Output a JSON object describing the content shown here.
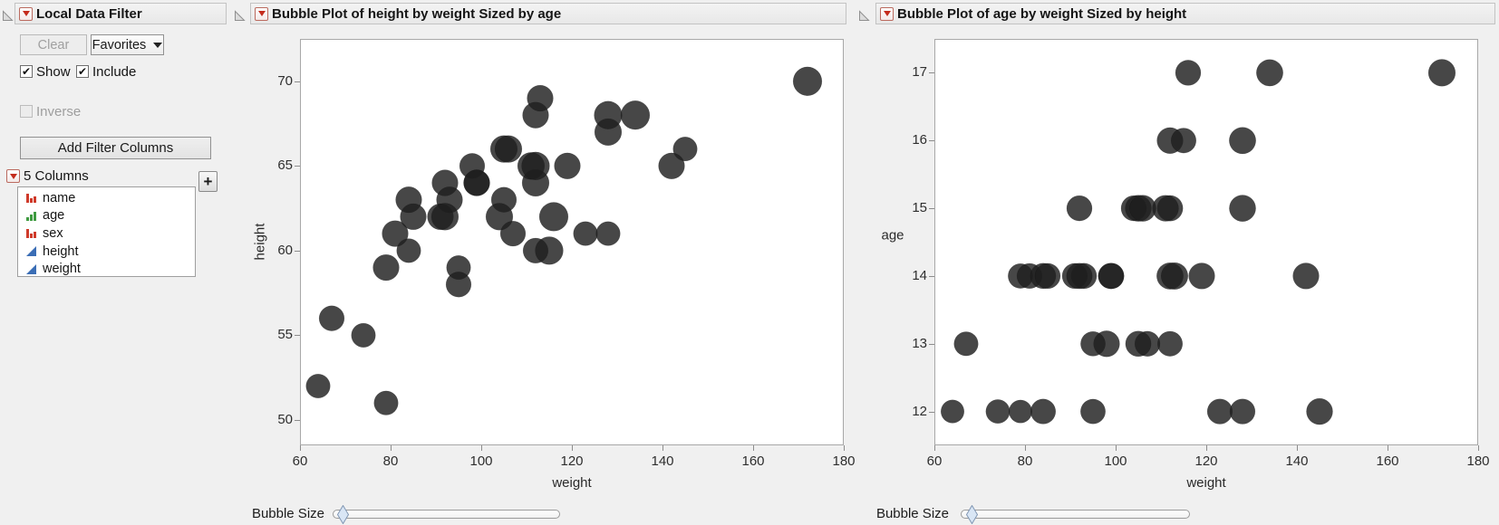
{
  "style": {
    "panel_bg": "#f0f0f0",
    "accent_red": "#c42b1c",
    "bubble_color": "#1e1e1e",
    "bubble_opacity": 0.82,
    "slider_thumb_color": "#d9e6f5",
    "nominal_icon_color": "#cf3a2a",
    "ordinal_icon_color": "#3f9b41",
    "continuous_icon_color": "#3a6db5"
  },
  "filter_panel": {
    "title": "Local Data Filter",
    "clear_button": "Clear",
    "favorites_button": "Favorites",
    "show_label": "Show",
    "include_label": "Include",
    "inverse_label": "Inverse",
    "show_checked": true,
    "include_checked": true,
    "inverse_checked": false,
    "add_filter_columns_button": "Add Filter Columns",
    "columns_count_label": "5 Columns",
    "add_column_button": "+",
    "columns": [
      {
        "name": "name",
        "type": "nominal"
      },
      {
        "name": "age",
        "type": "ordinal"
      },
      {
        "name": "sex",
        "type": "nominal"
      },
      {
        "name": "height",
        "type": "continuous"
      },
      {
        "name": "weight",
        "type": "continuous"
      }
    ]
  },
  "record_fields": [
    "weight",
    "height",
    "age"
  ],
  "records": [
    [
      95,
      59,
      12
    ],
    [
      123,
      61,
      12
    ],
    [
      74,
      55,
      12
    ],
    [
      145,
      66,
      12
    ],
    [
      64,
      52,
      12
    ],
    [
      84,
      60,
      12
    ],
    [
      128,
      61,
      12
    ],
    [
      79,
      51,
      12
    ],
    [
      112,
      60,
      13
    ],
    [
      107,
      61,
      13
    ],
    [
      67,
      56,
      13
    ],
    [
      98,
      65,
      13
    ],
    [
      105,
      63,
      13
    ],
    [
      95,
      58,
      13
    ],
    [
      79,
      59,
      14
    ],
    [
      81,
      61,
      14
    ],
    [
      91,
      62,
      14
    ],
    [
      142,
      65,
      14
    ],
    [
      84,
      63,
      14
    ],
    [
      85,
      62,
      14
    ],
    [
      93,
      63,
      14
    ],
    [
      99,
      64,
      14
    ],
    [
      119,
      65,
      14
    ],
    [
      92,
      64,
      14
    ],
    [
      112,
      68,
      14
    ],
    [
      99,
      64,
      14
    ],
    [
      113,
      69,
      14
    ],
    [
      92,
      62,
      15
    ],
    [
      112,
      64,
      15
    ],
    [
      128,
      67,
      15
    ],
    [
      111,
      65,
      15
    ],
    [
      105,
      66,
      15
    ],
    [
      104,
      62,
      15
    ],
    [
      106,
      66,
      15
    ],
    [
      112,
      65,
      16
    ],
    [
      115,
      60,
      16
    ],
    [
      128,
      68,
      16
    ],
    [
      116,
      62,
      17
    ],
    [
      134,
      68,
      17
    ],
    [
      172,
      70,
      17
    ]
  ],
  "chart_data": [
    {
      "type": "bubble",
      "title": "Bubble Plot of height by weight Sized by age",
      "xlabel": "weight",
      "ylabel": "height",
      "x_field": "weight",
      "y_field": "height",
      "size_field": "age",
      "size_scale": 3.85,
      "xlim": [
        60,
        180
      ],
      "ylim": [
        48.5,
        72.5
      ],
      "xticks": [
        60,
        80,
        100,
        120,
        140,
        160,
        180
      ],
      "yticks": [
        50,
        55,
        60,
        65,
        70
      ],
      "ylabel_rotated": true,
      "slider_label": "Bubble Size",
      "slider_fraction": 0.045
    },
    {
      "type": "bubble",
      "title": "Bubble Plot of age by weight Sized by height",
      "xlabel": "weight",
      "ylabel": "age",
      "x_field": "weight",
      "y_field": "age",
      "size_field": "height",
      "size_scale": 1.78,
      "xlim": [
        60,
        180
      ],
      "ylim": [
        11.5,
        17.5
      ],
      "xticks": [
        60,
        80,
        100,
        120,
        140,
        160,
        180
      ],
      "yticks": [
        12,
        13,
        14,
        15,
        16,
        17
      ],
      "ylabel_rotated": false,
      "slider_label": "Bubble Size",
      "slider_fraction": 0.05
    }
  ]
}
